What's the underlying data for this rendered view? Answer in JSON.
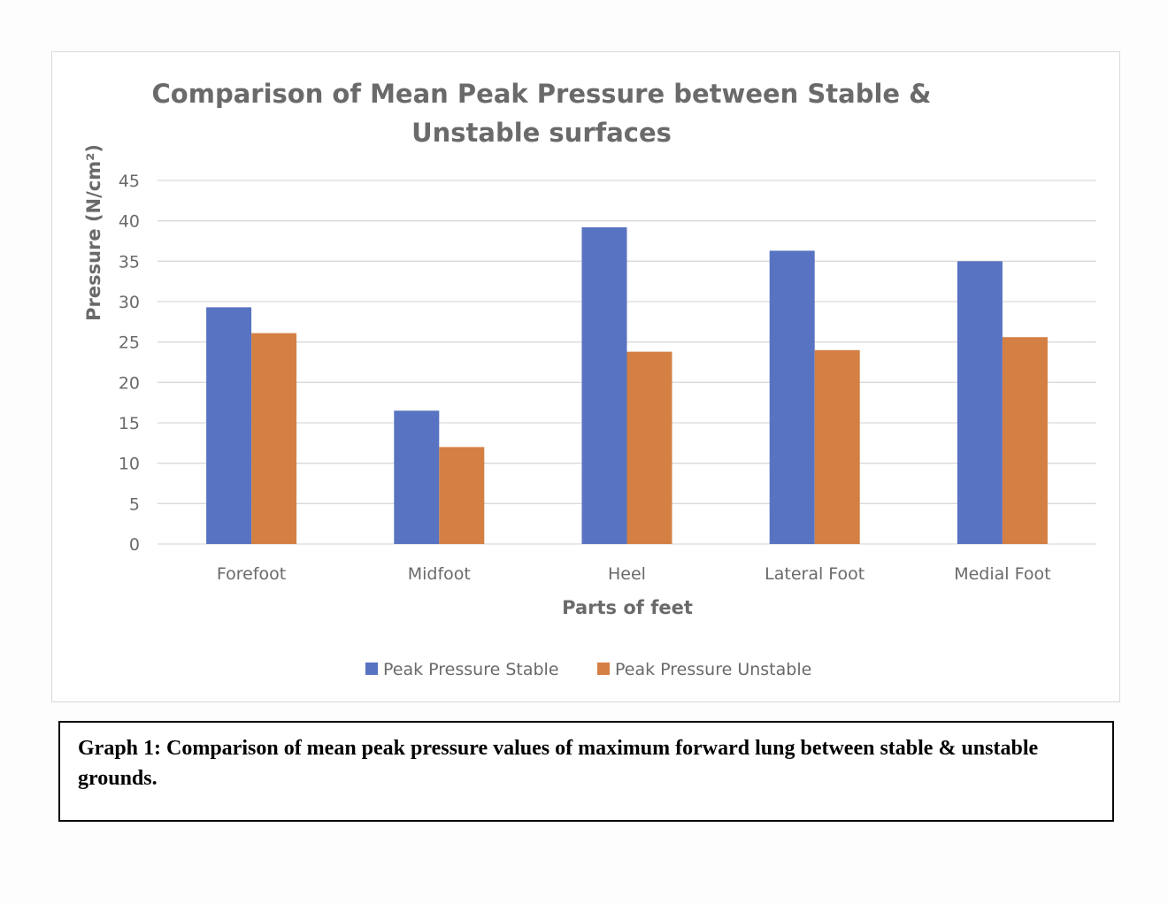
{
  "chart_data": {
    "type": "bar",
    "title_lines": [
      "Comparison of Mean Peak Pressure between Stable &",
      "Unstable surfaces"
    ],
    "xlabel": "Parts of feet",
    "ylabel": "Pressure (N/cm²)",
    "categories": [
      "Forefoot",
      "Midfoot",
      "Heel",
      "Lateral Foot",
      "Medial Foot"
    ],
    "ylim": [
      0,
      45
    ],
    "yticks": [
      0,
      5,
      10,
      15,
      20,
      25,
      30,
      35,
      40,
      45
    ],
    "grid": true,
    "legend_position": "bottom",
    "series": [
      {
        "name": "Peak Pressure Stable",
        "color": "#5873c1",
        "values": [
          29.3,
          16.5,
          39.2,
          36.3,
          35.0
        ]
      },
      {
        "name": "Peak Pressure Unstable",
        "color": "#d47f44",
        "values": [
          26.1,
          12.0,
          23.8,
          24.0,
          25.6
        ]
      }
    ]
  },
  "caption": {
    "text": "Graph 1: Comparison of mean peak pressure values of maximum forward lung between stable & unstable grounds."
  }
}
